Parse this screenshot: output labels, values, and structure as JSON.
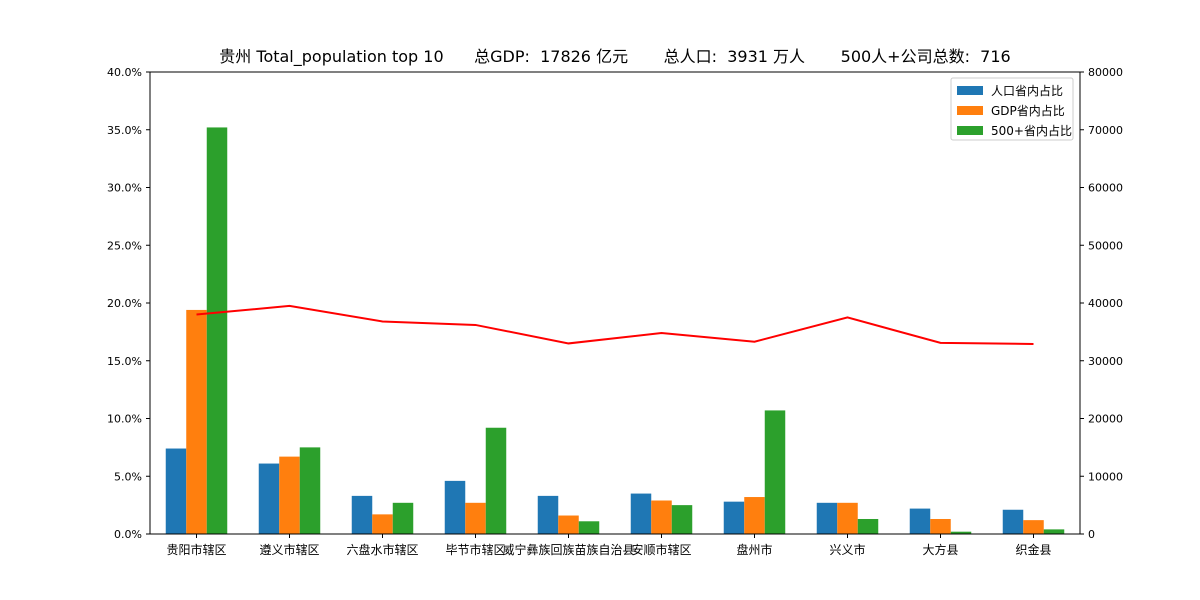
{
  "chart_data": {
    "type": "bar",
    "title": "贵州 Total_population top 10      总GDP:  17826 亿元       总人口:  3931 万人       500人+公司总数:  716",
    "categories": [
      "贵阳市辖区",
      "遵义市辖区",
      "六盘水市辖区",
      "毕节市辖区",
      "威宁彝族回族苗族自治县",
      "安顺市辖区",
      "盘州市",
      "兴义市",
      "大方县",
      "织金县"
    ],
    "series": [
      {
        "name": "人口省内占比",
        "color": "#1f77b4",
        "values": [
          7.4,
          6.1,
          3.3,
          4.6,
          3.3,
          3.5,
          2.8,
          2.7,
          2.2,
          2.1
        ]
      },
      {
        "name": "GDP省内占比",
        "color": "#ff7f0e",
        "values": [
          19.4,
          6.7,
          1.7,
          2.7,
          1.6,
          2.9,
          3.2,
          2.7,
          1.3,
          1.2
        ]
      },
      {
        "name": "500+省内占比",
        "color": "#2ca02c",
        "values": [
          35.2,
          7.5,
          2.7,
          9.2,
          1.1,
          2.5,
          10.7,
          1.3,
          0.2,
          0.4
        ]
      }
    ],
    "line_series": {
      "color": "#ff0000",
      "axis": "right",
      "values": [
        38000,
        39500,
        36800,
        36200,
        33000,
        34800,
        33300,
        37500,
        33100,
        32900
      ]
    },
    "y_left": {
      "ylim": [
        0,
        40
      ],
      "ticks": [
        0,
        5,
        10,
        15,
        20,
        25,
        30,
        35,
        40
      ],
      "tick_labels": [
        "0.0%",
        "5.0%",
        "10.0%",
        "15.0%",
        "20.0%",
        "25.0%",
        "30.0%",
        "35.0%",
        "40.0%"
      ]
    },
    "y_right": {
      "ylim": [
        0,
        80000
      ],
      "ticks": [
        0,
        10000,
        20000,
        30000,
        40000,
        50000,
        60000,
        70000,
        80000
      ],
      "tick_labels": [
        "0",
        "10000",
        "20000",
        "30000",
        "40000",
        "50000",
        "60000",
        "70000",
        "80000"
      ]
    },
    "xlabel": "",
    "ylabel": "",
    "legend_position": "top-right",
    "grid": false
  }
}
